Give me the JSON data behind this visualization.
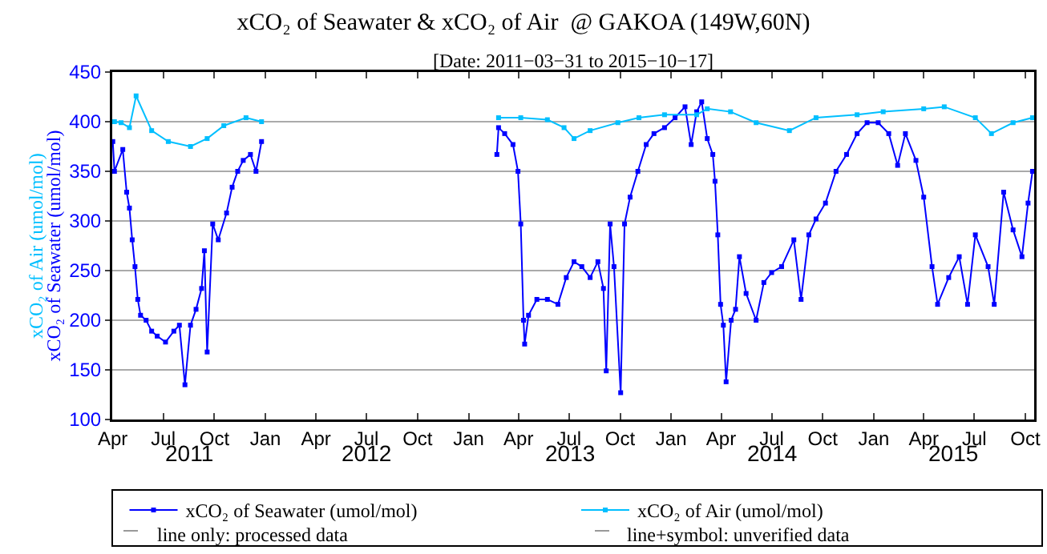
{
  "chart_data": {
    "type": "line",
    "title": "xCO₂ of Seawater & xCO₂ of Air  @ GAKOA (149W,60N)",
    "subtitle": "[Date: 2011−03−31 to 2015−10−17]",
    "ylabel": "xCO₂ of Seawater (umol/mol)",
    "annotations": [
      "xCO₂ of Air (umol/mol)",
      "line only: processed data",
      "line+symbol: unverified data",
      "2011",
      "2012",
      "2013",
      "2014",
      "2015"
    ],
    "series": [
      {
        "name": "xCO₂ of Seawater (umol/mol)",
        "color": "#0000ff",
        "x": [
          "2011-04-01",
          "2011-04-04",
          "2011-04-19",
          "2011-04-26",
          "2011-05-01",
          "2011-05-06",
          "2011-05-11",
          "2011-05-16",
          "2011-05-21",
          "2011-05-31",
          "2011-06-10",
          "2011-06-20",
          "2011-07-05",
          "2011-07-20",
          "2011-07-30",
          "2011-08-09",
          "2011-08-19",
          "2011-08-29",
          "2011-09-08",
          "2011-09-13",
          "2011-09-18",
          "2011-09-28",
          "2011-10-08",
          "2011-10-23",
          "2011-11-02",
          "2011-11-12",
          "2011-11-22",
          "2011-12-05",
          "2011-12-15",
          "2011-12-25",
          "2012-07-01",
          "2013-02-21",
          "2013-02-24",
          "2013-03-07",
          "2013-03-22",
          "2013-03-31",
          "2013-04-05",
          "2013-04-10",
          "2013-04-12",
          "2013-04-19",
          "2013-05-04",
          "2013-05-23",
          "2013-06-11",
          "2013-06-26",
          "2013-07-10",
          "2013-07-24",
          "2013-08-08",
          "2013-08-22",
          "2013-09-01",
          "2013-09-06",
          "2013-09-13",
          "2013-09-20",
          "2013-10-02",
          "2013-10-09",
          "2013-10-19",
          "2013-11-02",
          "2013-11-17",
          "2013-12-01",
          "2013-12-20",
          "2014-01-08",
          "2014-01-26",
          "2014-02-06",
          "2014-02-16",
          "2014-02-25",
          "2014-03-07",
          "2014-03-17",
          "2014-03-21",
          "2014-03-26",
          "2014-03-31",
          "2014-04-05",
          "2014-04-10",
          "2014-04-19",
          "2014-04-27",
          "2014-05-04",
          "2014-05-16",
          "2014-06-03",
          "2014-06-17",
          "2014-07-01",
          "2014-07-19",
          "2014-08-10",
          "2014-08-23",
          "2014-09-06",
          "2014-09-19",
          "2014-10-06",
          "2014-10-25",
          "2014-11-13",
          "2014-12-02",
          "2014-12-20",
          "2015-01-09",
          "2015-01-28",
          "2015-02-13",
          "2015-02-27",
          "2015-03-18",
          "2015-04-01",
          "2015-04-16",
          "2015-04-26",
          "2015-05-16",
          "2015-06-04",
          "2015-06-19",
          "2015-07-03",
          "2015-07-26",
          "2015-08-06",
          "2015-08-23",
          "2015-09-09",
          "2015-09-25",
          "2015-10-06",
          "2015-10-14"
        ],
        "values": [
          380,
          350,
          372,
          329,
          313,
          281,
          254,
          221,
          205,
          200,
          189,
          184,
          178,
          189,
          195,
          135,
          195,
          211,
          232,
          270,
          168,
          297,
          281,
          308,
          334,
          350,
          361,
          367,
          350,
          380,
          null,
          367,
          394,
          388,
          377,
          350,
          297,
          200,
          176,
          205,
          221,
          221,
          216,
          243,
          259,
          254,
          243,
          259,
          232,
          149,
          297,
          254,
          127,
          297,
          324,
          350,
          377,
          388,
          394,
          404,
          415,
          377,
          410,
          420,
          383,
          367,
          340,
          286,
          216,
          195,
          138,
          200,
          211,
          264,
          227,
          200,
          238,
          248,
          254,
          281,
          221,
          286,
          302,
          318,
          350,
          367,
          388,
          399,
          399,
          388,
          356,
          388,
          361,
          324,
          254,
          216,
          243,
          264,
          216,
          286,
          254,
          216,
          329,
          291,
          264,
          318,
          350
        ]
      },
      {
        "name": "xCO₂ of Air (umol/mol)",
        "color": "#00bfff",
        "x": [
          "2011-04-04",
          "2011-04-16",
          "2011-05-01",
          "2011-05-13",
          "2011-06-10",
          "2011-07-10",
          "2011-08-19",
          "2011-09-18",
          "2011-10-18",
          "2011-11-27",
          "2011-12-25",
          "2012-07-01",
          "2013-02-24",
          "2013-04-05",
          "2013-05-23",
          "2013-06-22",
          "2013-07-10",
          "2013-08-08",
          "2013-09-27",
          "2013-11-04",
          "2013-12-20",
          "2014-02-16",
          "2014-03-07",
          "2014-04-18",
          "2014-06-03",
          "2014-08-02",
          "2014-09-19",
          "2014-12-02",
          "2015-01-18",
          "2015-04-01",
          "2015-05-08",
          "2015-07-03",
          "2015-08-01",
          "2015-09-09",
          "2015-10-14"
        ],
        "values": [
          400,
          399,
          394,
          426,
          391,
          380,
          375,
          383,
          396,
          404,
          400,
          null,
          404,
          404,
          402,
          394,
          383,
          391,
          399,
          404,
          407,
          407,
          413,
          410,
          399,
          391,
          404,
          407,
          410,
          413,
          415,
          404,
          388,
          399,
          404
        ]
      }
    ],
    "xlim": [
      "2011-03-31",
      "2015-10-17"
    ],
    "xticks": [
      {
        "value": "2011-04-01",
        "label": "Apr"
      },
      {
        "value": "2011-07-01",
        "label": "Jul"
      },
      {
        "value": "2011-10-01",
        "label": "Oct"
      },
      {
        "value": "2012-01-01",
        "label": "Jan"
      },
      {
        "value": "2012-04-01",
        "label": "Apr"
      },
      {
        "value": "2012-07-01",
        "label": "Jul"
      },
      {
        "value": "2012-10-01",
        "label": "Oct"
      },
      {
        "value": "2013-01-01",
        "label": "Jan"
      },
      {
        "value": "2013-04-01",
        "label": "Apr"
      },
      {
        "value": "2013-07-01",
        "label": "Jul"
      },
      {
        "value": "2013-10-01",
        "label": "Oct"
      },
      {
        "value": "2014-01-01",
        "label": "Jan"
      },
      {
        "value": "2014-04-01",
        "label": "Apr"
      },
      {
        "value": "2014-07-01",
        "label": "Jul"
      },
      {
        "value": "2014-10-01",
        "label": "Oct"
      },
      {
        "value": "2015-01-01",
        "label": "Jan"
      },
      {
        "value": "2015-04-01",
        "label": "Apr"
      },
      {
        "value": "2015-07-01",
        "label": "Jul"
      },
      {
        "value": "2015-10-01",
        "label": "Oct"
      }
    ],
    "ylim": [
      100,
      450
    ],
    "yticks": [
      100,
      150,
      200,
      250,
      300,
      350,
      400,
      450
    ],
    "grid": "y",
    "legend": "bottom",
    "marker": "square",
    "line_style": "solid"
  }
}
